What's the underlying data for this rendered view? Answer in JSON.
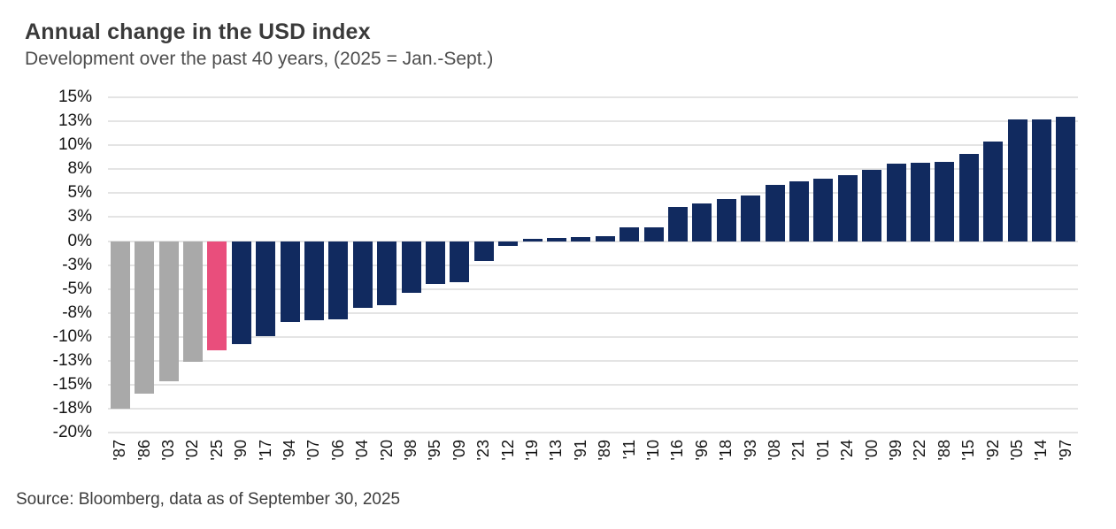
{
  "header": {
    "title": "Annual change in the USD index",
    "subtitle": "Development over the past 40 years, (2025 = Jan.-Sept.)"
  },
  "footer": {
    "source": "Source: Bloomberg, data as of September 30, 2025"
  },
  "chart_data": {
    "type": "bar",
    "title": "Annual change in the USD index",
    "subtitle": "Development over the past 40 years, (2025 = Jan.-Sept.)",
    "source_note": "Source: Bloomberg, data as of September 30, 2025",
    "unit": "%",
    "sort_order": "ascending by value",
    "categories": [
      "'87",
      "'86",
      "'03",
      "'02",
      "'25",
      "'90",
      "'17",
      "'94",
      "'07",
      "'06",
      "'04",
      "'20",
      "'98",
      "'95",
      "'09",
      "'23",
      "'12",
      "'19",
      "'13",
      "'91",
      "'89",
      "'11",
      "'10",
      "'16",
      "'96",
      "'18",
      "'93",
      "'08",
      "'21",
      "'01",
      "'24",
      "'00",
      "'99",
      "'22",
      "'88",
      "'15",
      "'92",
      "'05",
      "'14",
      "'97"
    ],
    "values": [
      -17.5,
      -15.9,
      -14.6,
      -12.6,
      -11.4,
      -10.7,
      -9.9,
      -8.4,
      -8.3,
      -8.2,
      -7.0,
      -6.7,
      -5.4,
      -4.5,
      -4.3,
      -2.1,
      -0.5,
      0.2,
      0.3,
      0.4,
      0.5,
      1.4,
      1.4,
      3.6,
      3.9,
      4.4,
      4.8,
      5.9,
      6.2,
      6.5,
      6.9,
      7.4,
      8.1,
      8.2,
      8.3,
      9.1,
      10.4,
      12.7,
      12.7,
      13.0
    ],
    "ylim": [
      -20,
      15
    ],
    "y_ticks": {
      "labels": [
        "15%",
        "13%",
        "10%",
        "8%",
        "5%",
        "3%",
        "0%",
        "-3%",
        "-5%",
        "-8%",
        "-10%",
        "-13%",
        "-15%",
        "-18%",
        "-20%"
      ],
      "values": [
        15,
        12.5,
        10,
        7.5,
        5,
        2.5,
        0,
        -2.5,
        -5,
        -7.5,
        -10,
        -12.5,
        -15,
        -17.5,
        -20
      ]
    },
    "grid": "horizontal",
    "legend": "none",
    "colors": {
      "default": "#112a5f",
      "gray": "#a9a9a9",
      "highlight": "#e94e7c",
      "gridline": "#e4e4e4"
    },
    "color_rules": {
      "gray_years": [
        "'87",
        "'86",
        "'03",
        "'02"
      ],
      "highlight_year": "'25"
    }
  }
}
